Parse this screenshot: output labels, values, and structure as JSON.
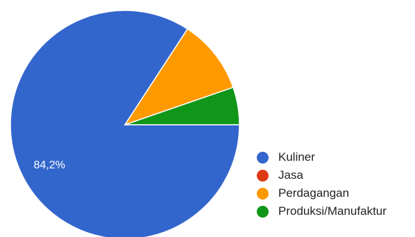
{
  "chart_data": {
    "type": "pie",
    "categories": [
      "Kuliner",
      "Jasa",
      "Perdagangan",
      "Produksi/Manufaktur"
    ],
    "values": [
      84.2,
      0,
      10.5,
      5.3
    ],
    "colors": [
      "#3366cc",
      "#dc3912",
      "#ff9900",
      "#109618"
    ],
    "slice_labels": [
      "84,2%",
      "",
      "",
      ""
    ],
    "legend_position": "right-bottom"
  }
}
